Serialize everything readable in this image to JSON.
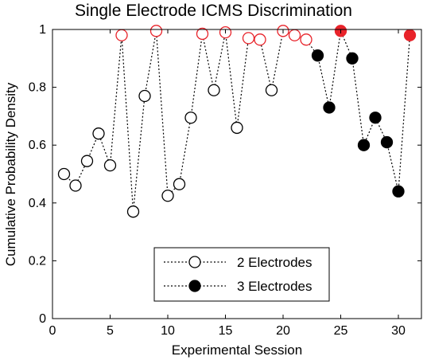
{
  "chart_data": {
    "type": "scatter",
    "title": "Single Electrode ICMS Discrimination",
    "xlabel": "Experimental Session",
    "ylabel": "Cumulative Probability Density",
    "xlim": [
      0,
      32
    ],
    "ylim": [
      0,
      1
    ],
    "xticks": [
      0,
      5,
      10,
      15,
      20,
      25,
      30
    ],
    "yticks": [
      0,
      0.2,
      0.4,
      0.6,
      0.8,
      1
    ],
    "ytick_labels": [
      "0",
      "0.2",
      "0.4",
      "0.6",
      "0.8",
      "1"
    ],
    "line_style": "dotted",
    "legend_position": "bottom-center",
    "series": [
      {
        "name": "2 Electrodes",
        "marker": "open-circle",
        "points": [
          {
            "x": 1,
            "y": 0.5,
            "highlight": false
          },
          {
            "x": 2,
            "y": 0.46,
            "highlight": false
          },
          {
            "x": 3,
            "y": 0.545,
            "highlight": false
          },
          {
            "x": 4,
            "y": 0.64,
            "highlight": false
          },
          {
            "x": 5,
            "y": 0.53,
            "highlight": false
          },
          {
            "x": 6,
            "y": 0.98,
            "highlight": true
          },
          {
            "x": 7,
            "y": 0.37,
            "highlight": false
          },
          {
            "x": 8,
            "y": 0.77,
            "highlight": false
          },
          {
            "x": 9,
            "y": 0.995,
            "highlight": true
          },
          {
            "x": 10,
            "y": 0.425,
            "highlight": false
          },
          {
            "x": 11,
            "y": 0.465,
            "highlight": false
          },
          {
            "x": 12,
            "y": 0.695,
            "highlight": false
          },
          {
            "x": 13,
            "y": 0.985,
            "highlight": true
          },
          {
            "x": 14,
            "y": 0.79,
            "highlight": false
          },
          {
            "x": 15,
            "y": 0.99,
            "highlight": true
          },
          {
            "x": 16,
            "y": 0.66,
            "highlight": false
          },
          {
            "x": 17,
            "y": 0.97,
            "highlight": true
          },
          {
            "x": 18,
            "y": 0.965,
            "highlight": true
          },
          {
            "x": 19,
            "y": 0.79,
            "highlight": false
          },
          {
            "x": 20,
            "y": 0.995,
            "highlight": true
          },
          {
            "x": 21,
            "y": 0.98,
            "highlight": true
          },
          {
            "x": 22,
            "y": 0.965,
            "highlight": true
          }
        ]
      },
      {
        "name": "3 Electrodes",
        "marker": "filled-circle",
        "points": [
          {
            "x": 23,
            "y": 0.91,
            "highlight": false
          },
          {
            "x": 24,
            "y": 0.73,
            "highlight": false
          },
          {
            "x": 25,
            "y": 0.995,
            "highlight": true
          },
          {
            "x": 26,
            "y": 0.9,
            "highlight": false
          },
          {
            "x": 27,
            "y": 0.6,
            "highlight": false
          },
          {
            "x": 28,
            "y": 0.695,
            "highlight": false
          },
          {
            "x": 29,
            "y": 0.61,
            "highlight": false
          },
          {
            "x": 30,
            "y": 0.44,
            "highlight": false
          },
          {
            "x": 31,
            "y": 0.98,
            "highlight": true
          }
        ]
      }
    ]
  },
  "colors": {
    "axis": "#000000",
    "marker": "#000000",
    "highlight": "#e8232a",
    "background": "#ffffff"
  }
}
